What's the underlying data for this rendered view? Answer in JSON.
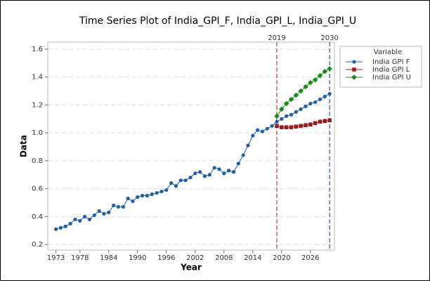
{
  "chart_data": {
    "type": "line",
    "title": "Time Series Plot of India_GPI_F, India_GPI_L, India_GPI_U",
    "x_label": "Year",
    "y_label": "Data",
    "legend_title": "Variable",
    "legend_position": "right",
    "x": [
      1973,
      1974,
      1975,
      1976,
      1977,
      1978,
      1979,
      1980,
      1981,
      1982,
      1983,
      1984,
      1985,
      1986,
      1987,
      1988,
      1989,
      1990,
      1991,
      1992,
      1993,
      1994,
      1995,
      1996,
      1997,
      1998,
      1999,
      2000,
      2001,
      2002,
      2003,
      2004,
      2005,
      2006,
      2007,
      2008,
      2009,
      2010,
      2011,
      2012,
      2013,
      2014,
      2015,
      2016,
      2017,
      2018,
      2019,
      2020,
      2021,
      2022,
      2023,
      2024,
      2025,
      2026,
      2027,
      2028,
      2029,
      2030
    ],
    "series": [
      {
        "name": "India GPI F",
        "color": "#1f5fa8",
        "marker": "circle",
        "values": [
          0.31,
          0.32,
          0.33,
          0.35,
          0.38,
          0.37,
          0.4,
          0.38,
          0.41,
          0.44,
          0.42,
          0.43,
          0.48,
          0.47,
          0.47,
          0.53,
          0.51,
          0.54,
          0.55,
          0.55,
          0.56,
          0.57,
          0.58,
          0.59,
          0.64,
          0.62,
          0.66,
          0.66,
          0.68,
          0.71,
          0.72,
          0.69,
          0.7,
          0.75,
          0.74,
          0.71,
          0.73,
          0.72,
          0.78,
          0.84,
          0.91,
          0.98,
          1.02,
          1.01,
          1.03,
          1.05,
          1.08,
          1.1,
          1.12,
          1.13,
          1.15,
          1.17,
          1.19,
          1.21,
          1.22,
          1.24,
          1.26,
          1.28
        ]
      },
      {
        "name": "India GPI L",
        "color": "#9b1c1c",
        "marker": "square",
        "values": [
          null,
          null,
          null,
          null,
          null,
          null,
          null,
          null,
          null,
          null,
          null,
          null,
          null,
          null,
          null,
          null,
          null,
          null,
          null,
          null,
          null,
          null,
          null,
          null,
          null,
          null,
          null,
          null,
          null,
          null,
          null,
          null,
          null,
          null,
          null,
          null,
          null,
          null,
          null,
          null,
          null,
          null,
          null,
          null,
          null,
          null,
          1.05,
          1.04,
          1.04,
          1.04,
          1.045,
          1.05,
          1.055,
          1.06,
          1.07,
          1.08,
          1.085,
          1.09
        ]
      },
      {
        "name": "India GPI U",
        "color": "#1a8a1a",
        "marker": "diamond",
        "values": [
          null,
          null,
          null,
          null,
          null,
          null,
          null,
          null,
          null,
          null,
          null,
          null,
          null,
          null,
          null,
          null,
          null,
          null,
          null,
          null,
          null,
          null,
          null,
          null,
          null,
          null,
          null,
          null,
          null,
          null,
          null,
          null,
          null,
          null,
          null,
          null,
          null,
          null,
          null,
          null,
          null,
          null,
          null,
          null,
          null,
          null,
          1.12,
          1.17,
          1.21,
          1.24,
          1.27,
          1.3,
          1.33,
          1.36,
          1.38,
          1.41,
          1.44,
          1.46
        ]
      }
    ],
    "reference_lines": [
      {
        "value": 2019,
        "label": "2019",
        "color": "#c0393b"
      },
      {
        "value": 2030,
        "label": "2030",
        "color": "#2a56c6"
      }
    ],
    "xlim": [
      1971.3,
      2031
    ],
    "xticks": [
      1973,
      1978,
      1984,
      1990,
      1996,
      2002,
      2008,
      2014,
      2020,
      2026
    ],
    "ylim": [
      0.16,
      1.65
    ],
    "yticks": [
      0.2,
      0.4,
      0.6,
      0.8,
      {
        "value": 1,
        "label": "1.0"
      },
      1.2,
      1.4,
      1.6
    ],
    "grid": true
  }
}
